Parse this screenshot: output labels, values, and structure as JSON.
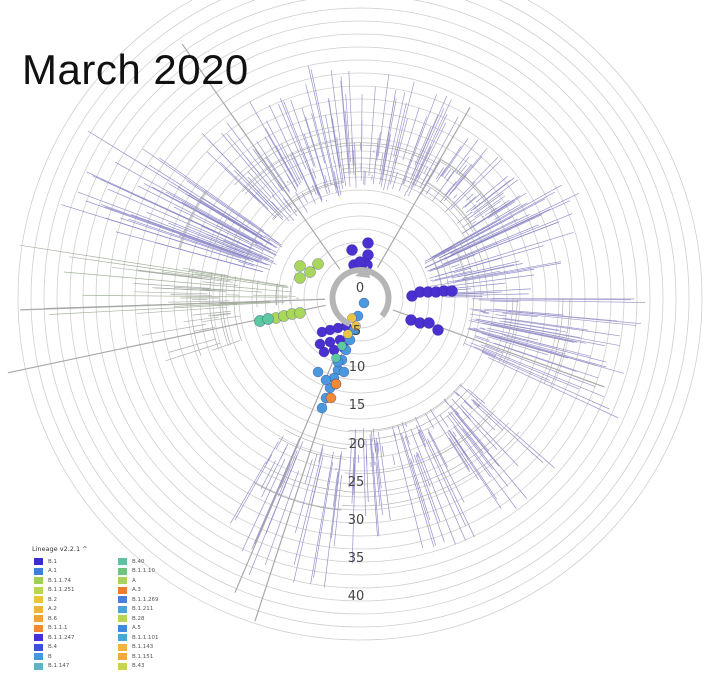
{
  "title": "March 2020",
  "tree": {
    "tick_labels": [
      "0",
      "5",
      "10",
      "15",
      "20",
      "25",
      "30",
      "35",
      "40"
    ]
  },
  "legend": {
    "title": "Lineage v2.2.1 ^",
    "items": [
      {
        "label": "B.1",
        "color": "#3b2ccf"
      },
      {
        "label": "A.1",
        "color": "#3b7fd6"
      },
      {
        "label": "B.1.1.74",
        "color": "#9fce5a"
      },
      {
        "label": "B.1.1.251",
        "color": "#b9d64e"
      },
      {
        "label": "B.2",
        "color": "#e9c43c"
      },
      {
        "label": "A.2",
        "color": "#f1b33d"
      },
      {
        "label": "B.6",
        "color": "#f4a13a"
      },
      {
        "label": "B.1.1.1",
        "color": "#f08a35"
      },
      {
        "label": "B.1.1.247",
        "color": "#4630d6"
      },
      {
        "label": "B.4",
        "color": "#3a52d8"
      },
      {
        "label": "B",
        "color": "#3f9ae0"
      },
      {
        "label": "B.1.147",
        "color": "#5ab4c6"
      },
      {
        "label": "B.40",
        "color": "#5fc0a3"
      },
      {
        "label": "B.1.1.10",
        "color": "#6fc37f"
      },
      {
        "label": "A",
        "color": "#a9d25a"
      },
      {
        "label": "A.3",
        "color": "#ee7b30"
      },
      {
        "label": "B.1.1.269",
        "color": "#4a7fe0"
      },
      {
        "label": "B.1.211",
        "color": "#4aa3dc"
      },
      {
        "label": "B.28",
        "color": "#b8d450"
      },
      {
        "label": "A.5",
        "color": "#3f88df"
      },
      {
        "label": "B.1.1.101",
        "color": "#45a9d6"
      },
      {
        "label": "B.1.143",
        "color": "#f2b43f"
      },
      {
        "label": "B.1.151",
        "color": "#f3a73c"
      },
      {
        "label": "B.43",
        "color": "#c6d54c"
      }
    ]
  }
}
